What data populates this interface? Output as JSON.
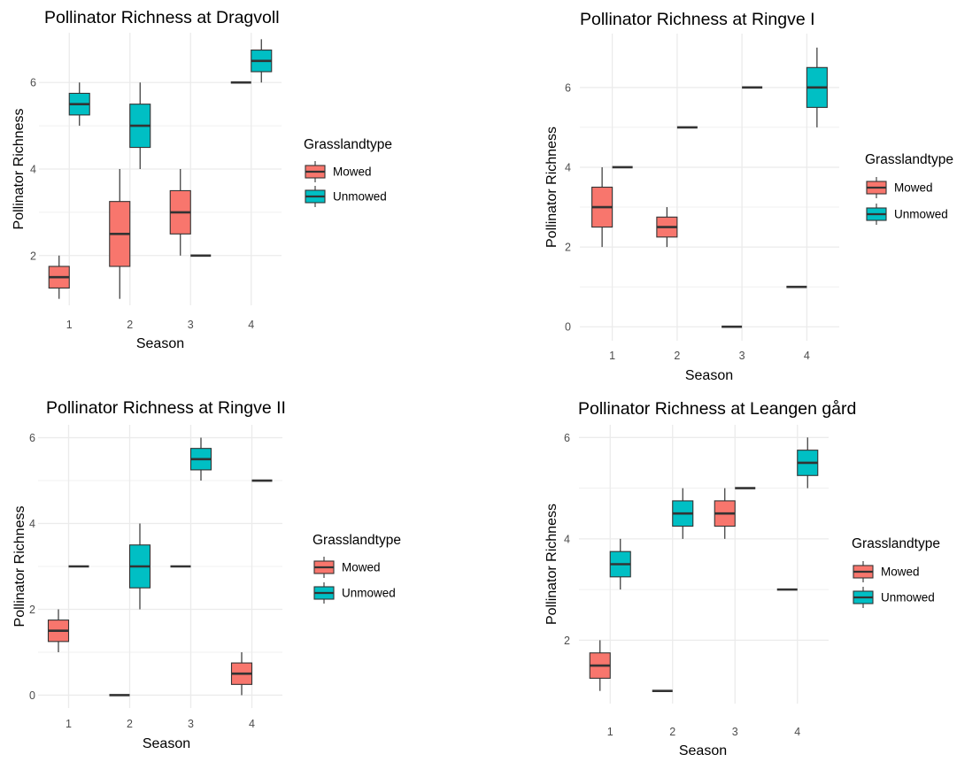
{
  "colors": {
    "mowed": "#F8766D",
    "unmowed": "#00BFC4",
    "grid": "#EBEBEB",
    "outline": "#333333",
    "text": "#000000",
    "tick_text": "#4D4D4D"
  },
  "chart_data": [
    {
      "type": "box",
      "title": "Pollinator Richness at Dragvoll",
      "xlabel": "Season",
      "ylabel": "Pollinator Richness",
      "categories": [
        "1",
        "2",
        "3",
        "4"
      ],
      "yticks": [
        2,
        4,
        6
      ],
      "ylim": [
        0.85,
        7.15
      ],
      "legend": {
        "title": "Grasslandtype",
        "position": "right",
        "entries": [
          "Mowed",
          "Unmowed"
        ]
      },
      "series": [
        {
          "name": "Mowed",
          "boxes": [
            {
              "min": 1,
              "q1": 1.25,
              "median": 1.5,
              "q3": 1.75,
              "max": 2
            },
            {
              "min": 1,
              "q1": 1.75,
              "median": 2.5,
              "q3": 3.25,
              "max": 4
            },
            {
              "min": 2,
              "q1": 2.5,
              "median": 3,
              "q3": 3.5,
              "max": 4
            },
            {
              "min": 6,
              "q1": 6,
              "median": 6,
              "q3": 6,
              "max": 6
            }
          ]
        },
        {
          "name": "Unmowed",
          "boxes": [
            {
              "min": 5,
              "q1": 5.25,
              "median": 5.5,
              "q3": 5.75,
              "max": 6
            },
            {
              "min": 4,
              "q1": 4.5,
              "median": 5,
              "q3": 5.5,
              "max": 6
            },
            {
              "min": 2,
              "q1": 2,
              "median": 2,
              "q3": 2,
              "max": 2
            },
            {
              "min": 6,
              "q1": 6.25,
              "median": 6.5,
              "q3": 6.75,
              "max": 7
            }
          ]
        }
      ]
    },
    {
      "type": "box",
      "title": "Pollinator Richness at Ringve I",
      "xlabel": "Season",
      "ylabel": "Pollinator Richness",
      "categories": [
        "1",
        "2",
        "3",
        "4"
      ],
      "yticks": [
        0,
        2,
        4,
        6
      ],
      "ylim": [
        -0.35,
        7.35
      ],
      "legend": {
        "title": "Grasslandtype",
        "position": "right",
        "entries": [
          "Mowed",
          "Unmowed"
        ]
      },
      "series": [
        {
          "name": "Mowed",
          "boxes": [
            {
              "min": 2,
              "q1": 2.5,
              "median": 3,
              "q3": 3.5,
              "max": 4
            },
            {
              "min": 2,
              "q1": 2.25,
              "median": 2.5,
              "q3": 2.75,
              "max": 3
            },
            {
              "min": 0,
              "q1": 0,
              "median": 0,
              "q3": 0,
              "max": 0
            },
            {
              "min": 1,
              "q1": 1,
              "median": 1,
              "q3": 1,
              "max": 1
            }
          ]
        },
        {
          "name": "Unmowed",
          "boxes": [
            {
              "min": 4,
              "q1": 4,
              "median": 4,
              "q3": 4,
              "max": 4
            },
            {
              "min": 5,
              "q1": 5,
              "median": 5,
              "q3": 5,
              "max": 5
            },
            {
              "min": 6,
              "q1": 6,
              "median": 6,
              "q3": 6,
              "max": 6
            },
            {
              "min": 5,
              "q1": 5.5,
              "median": 6,
              "q3": 6.5,
              "max": 7
            }
          ]
        }
      ]
    },
    {
      "type": "box",
      "title": "Pollinator Richness at Ringve II",
      "xlabel": "Season",
      "ylabel": "Pollinator Richness",
      "categories": [
        "1",
        "2",
        "3",
        "4"
      ],
      "yticks": [
        0,
        2,
        4,
        6
      ],
      "ylim": [
        -0.3,
        6.3
      ],
      "legend": {
        "title": "Grasslandtype",
        "position": "right",
        "entries": [
          "Mowed",
          "Unmowed"
        ]
      },
      "series": [
        {
          "name": "Mowed",
          "boxes": [
            {
              "min": 1,
              "q1": 1.25,
              "median": 1.5,
              "q3": 1.75,
              "max": 2
            },
            {
              "min": 0,
              "q1": 0,
              "median": 0,
              "q3": 0,
              "max": 0
            },
            {
              "min": 3,
              "q1": 3,
              "median": 3,
              "q3": 3,
              "max": 3
            },
            {
              "min": 0,
              "q1": 0.25,
              "median": 0.5,
              "q3": 0.75,
              "max": 1
            }
          ]
        },
        {
          "name": "Unmowed",
          "boxes": [
            {
              "min": 3,
              "q1": 3,
              "median": 3,
              "q3": 3,
              "max": 3
            },
            {
              "min": 2,
              "q1": 2.5,
              "median": 3,
              "q3": 3.5,
              "max": 4
            },
            {
              "min": 5,
              "q1": 5.25,
              "median": 5.5,
              "q3": 5.75,
              "max": 6
            },
            {
              "min": 5,
              "q1": 5,
              "median": 5,
              "q3": 5,
              "max": 5
            }
          ]
        }
      ]
    },
    {
      "type": "box",
      "title": "Pollinator Richness at Leangen gård",
      "xlabel": "Season",
      "ylabel": "Pollinator Richness",
      "categories": [
        "1",
        "2",
        "3",
        "4"
      ],
      "yticks": [
        2,
        4,
        6
      ],
      "ylim": [
        0.75,
        6.25
      ],
      "legend": {
        "title": "Grasslandtype",
        "position": "right",
        "entries": [
          "Mowed",
          "Unmowed"
        ]
      },
      "series": [
        {
          "name": "Mowed",
          "boxes": [
            {
              "min": 1,
              "q1": 1.25,
              "median": 1.5,
              "q3": 1.75,
              "max": 2
            },
            {
              "min": 1,
              "q1": 1,
              "median": 1,
              "q3": 1,
              "max": 1
            },
            {
              "min": 4,
              "q1": 4.25,
              "median": 4.5,
              "q3": 4.75,
              "max": 5
            },
            {
              "min": 3,
              "q1": 3,
              "median": 3,
              "q3": 3,
              "max": 3
            }
          ]
        },
        {
          "name": "Unmowed",
          "boxes": [
            {
              "min": 3,
              "q1": 3.25,
              "median": 3.5,
              "q3": 3.75,
              "max": 4
            },
            {
              "min": 4,
              "q1": 4.25,
              "median": 4.5,
              "q3": 4.75,
              "max": 5
            },
            {
              "min": 5,
              "q1": 5,
              "median": 5,
              "q3": 5,
              "max": 5
            },
            {
              "min": 5,
              "q1": 5.25,
              "median": 5.5,
              "q3": 5.75,
              "max": 6
            }
          ]
        }
      ]
    }
  ]
}
